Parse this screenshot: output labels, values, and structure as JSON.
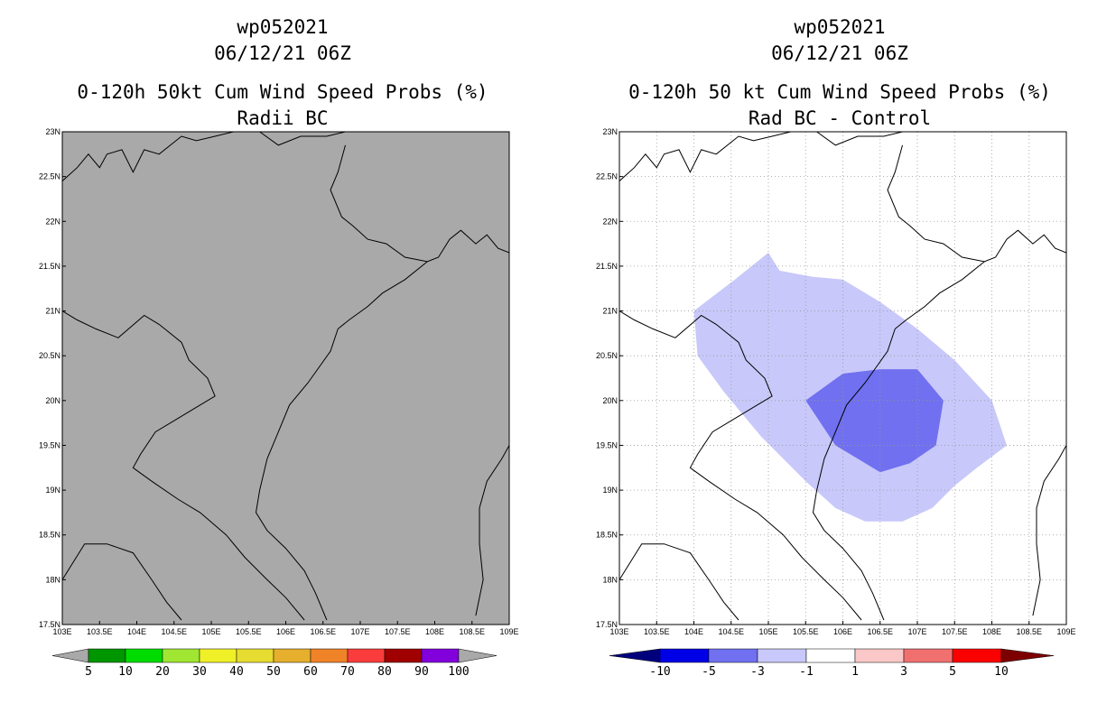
{
  "chart_data": [
    {
      "type": "heatmap",
      "title_lines": [
        "wp052021",
        "06/12/21 06Z",
        "0-120h 50kt Cum Wind Speed Probs (%)",
        "Radii BC"
      ],
      "x_ticks": [
        "103E",
        "103.5E",
        "104E",
        "104.5E",
        "105E",
        "105.5E",
        "106E",
        "106.5E",
        "107E",
        "107.5E",
        "108E",
        "108.5E",
        "109E"
      ],
      "y_ticks": [
        "17.5N",
        "18N",
        "18.5N",
        "19N",
        "19.5N",
        "20N",
        "20.5N",
        "21N",
        "21.5N",
        "22N",
        "22.5N",
        "23N"
      ],
      "xlim": [
        103,
        109
      ],
      "ylim": [
        17.5,
        23
      ],
      "field": "uniform",
      "field_color": "#a9a9a9",
      "colorbar": {
        "labels": [
          "5",
          "10",
          "20",
          "30",
          "40",
          "50",
          "60",
          "70",
          "80",
          "90",
          "100"
        ],
        "colors": [
          "#009600",
          "#00dc00",
          "#a0e632",
          "#f0f028",
          "#e6dc32",
          "#e6af2d",
          "#f08228",
          "#fa3c3c",
          "#a00000",
          "#8200dc"
        ],
        "end_color": "#a9a9a9"
      }
    },
    {
      "type": "heatmap",
      "title_lines": [
        "wp052021",
        "06/12/21 06Z",
        "0-120h 50 kt Cum Wind Speed Probs (%)",
        "Rad BC - Control"
      ],
      "x_ticks": [
        "103E",
        "103.5E",
        "104E",
        "104.5E",
        "105E",
        "105.5E",
        "106E",
        "106.5E",
        "107E",
        "107.5E",
        "108E",
        "108.5E",
        "109E"
      ],
      "y_ticks": [
        "17.5N",
        "18N",
        "18.5N",
        "19N",
        "19.5N",
        "20N",
        "20.5N",
        "21N",
        "21.5N",
        "22N",
        "22.5N",
        "23N"
      ],
      "xlim": [
        103,
        109
      ],
      "ylim": [
        17.5,
        23
      ],
      "contours": [
        {
          "level": "-3 to -1",
          "color": "#c8c8fa",
          "polygon": [
            [
              104.0,
              21.0
            ],
            [
              104.55,
              21.35
            ],
            [
              105.0,
              21.65
            ],
            [
              105.15,
              21.45
            ],
            [
              105.6,
              21.38
            ],
            [
              106.0,
              21.35
            ],
            [
              106.5,
              21.1
            ],
            [
              107.0,
              20.8
            ],
            [
              107.5,
              20.45
            ],
            [
              108.0,
              20.0
            ],
            [
              108.2,
              19.5
            ],
            [
              107.8,
              19.25
            ],
            [
              107.5,
              19.05
            ],
            [
              107.2,
              18.8
            ],
            [
              106.8,
              18.65
            ],
            [
              106.3,
              18.65
            ],
            [
              105.9,
              18.8
            ],
            [
              105.5,
              19.1
            ],
            [
              104.9,
              19.6
            ],
            [
              104.4,
              20.1
            ],
            [
              104.05,
              20.5
            ]
          ]
        },
        {
          "level": "-5 to -3",
          "color": "#7070f0",
          "polygon": [
            [
              105.5,
              20.0
            ],
            [
              106.0,
              20.3
            ],
            [
              106.5,
              20.35
            ],
            [
              107.0,
              20.35
            ],
            [
              107.35,
              20.0
            ],
            [
              107.25,
              19.5
            ],
            [
              106.9,
              19.3
            ],
            [
              106.5,
              19.2
            ],
            [
              106.2,
              19.35
            ],
            [
              105.9,
              19.5
            ]
          ]
        }
      ],
      "colorbar": {
        "labels": [
          "-10",
          "-5",
          "-3",
          "-1",
          "1",
          "3",
          "5",
          "10"
        ],
        "colors": [
          "#0000e6",
          "#7070f0",
          "#c8c8fa",
          "#ffffff",
          "#fac8c8",
          "#f07070",
          "#fa0000"
        ],
        "left_end_color": "#00007d",
        "right_end_color": "#7d0000"
      }
    }
  ]
}
